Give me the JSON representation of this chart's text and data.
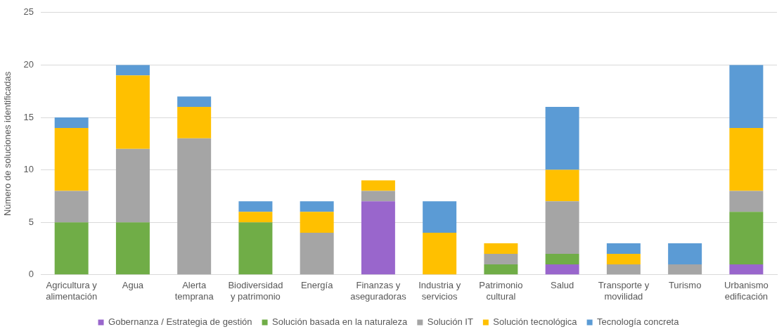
{
  "chart_data": {
    "type": "bar",
    "stacked": true,
    "ylabel": "Número de soluciones identificadas",
    "categories": [
      "Agricultura y alimentación",
      "Agua",
      "Alerta temprana",
      "Biodiversidad y patrimonio",
      "Energía",
      "Finanzas y aseguradoras",
      "Industria y servicios",
      "Patrimonio cultural",
      "Salud",
      "Transporte y movilidad",
      "Turismo",
      "Urbanismo edificación"
    ],
    "series": [
      {
        "name": "Gobernanza / Estrategia de gestión",
        "color": "#9966cc",
        "values": [
          0,
          0,
          0,
          0,
          0,
          7,
          0,
          0,
          1,
          0,
          0,
          1
        ]
      },
      {
        "name": "Solución basada en la naturaleza",
        "color": "#70ad47",
        "values": [
          5,
          5,
          0,
          5,
          0,
          0,
          0,
          1,
          1,
          0,
          0,
          5
        ]
      },
      {
        "name": "Solución IT",
        "color": "#a5a5a5",
        "values": [
          3,
          7,
          13,
          0,
          4,
          1,
          0,
          1,
          5,
          1,
          1,
          2
        ]
      },
      {
        "name": "Solución tecnológica",
        "color": "#ffc000",
        "values": [
          6,
          7,
          3,
          1,
          2,
          1,
          4,
          1,
          3,
          1,
          0,
          6
        ]
      },
      {
        "name": "Tecnología concreta",
        "color": "#5b9bd5",
        "values": [
          1,
          1,
          1,
          1,
          1,
          0,
          3,
          0,
          6,
          1,
          2,
          6
        ]
      }
    ],
    "ylim": [
      0,
      25
    ],
    "yticks": [
      0,
      5,
      10,
      15,
      20,
      25
    ],
    "grid": "y",
    "legend": "bottom"
  }
}
